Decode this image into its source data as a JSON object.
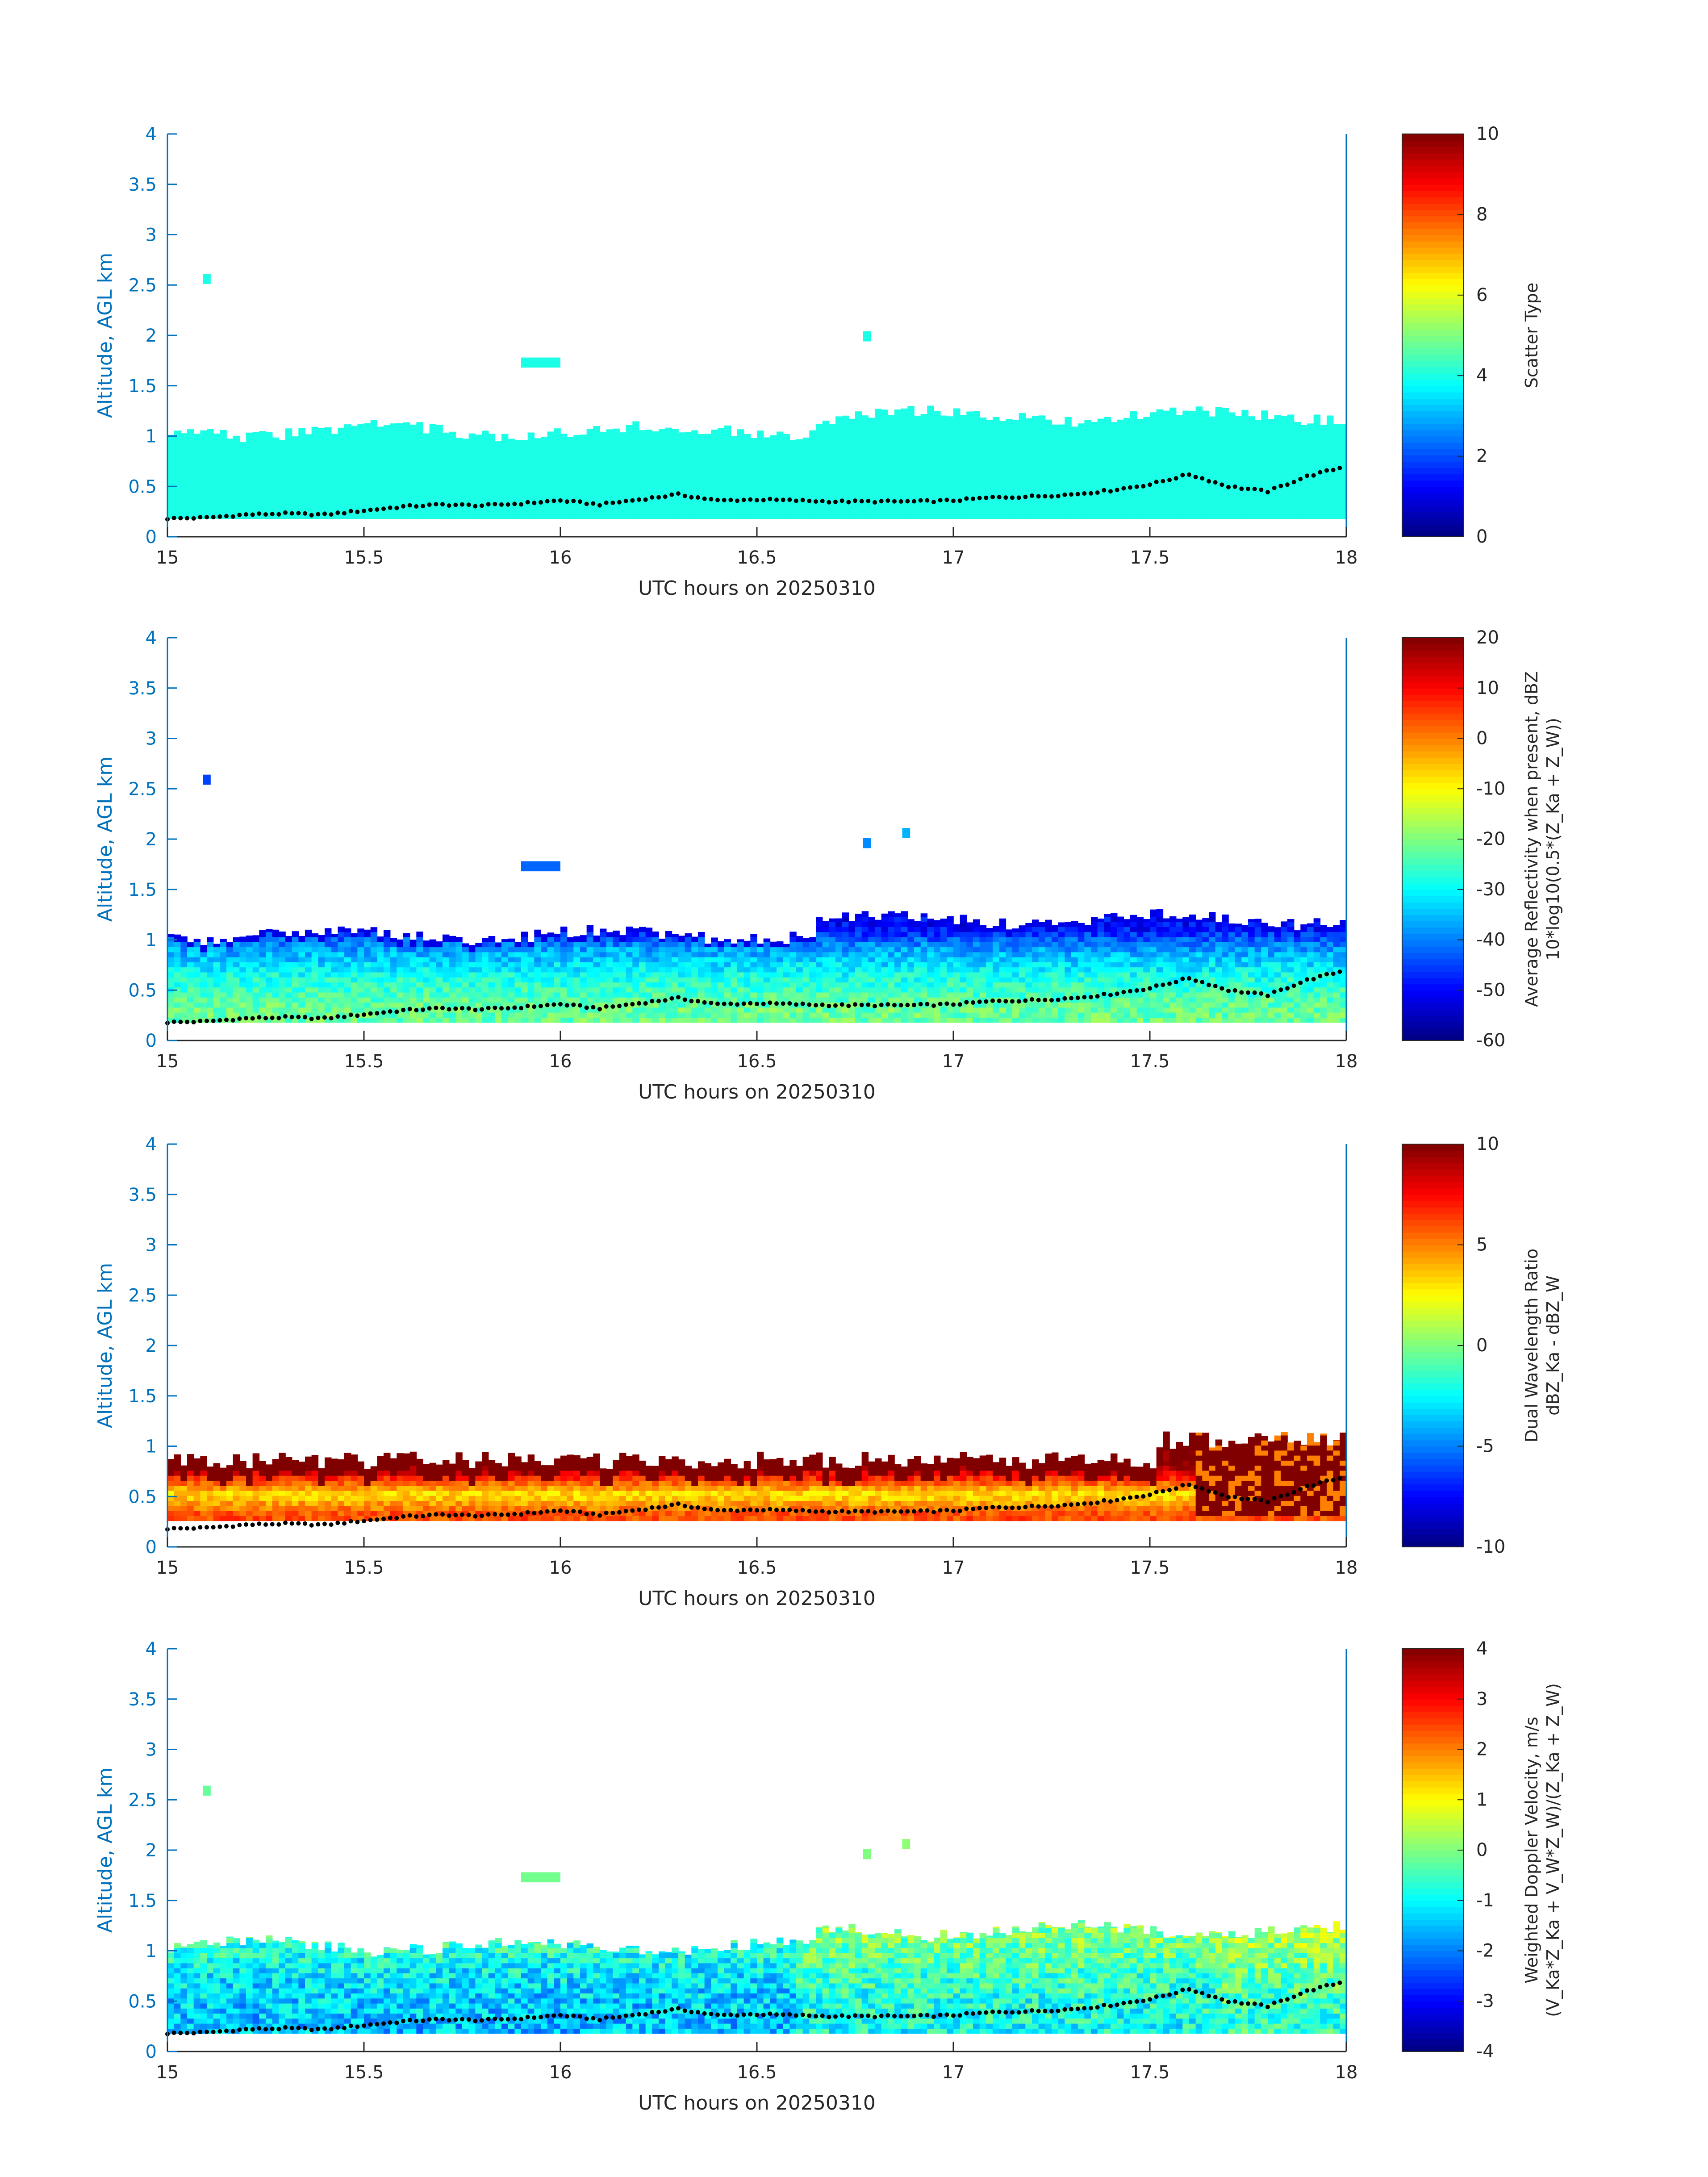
{
  "figure": {
    "x_ticks": [
      "15",
      "15.5",
      "16",
      "16.5",
      "17",
      "17.5",
      "18"
    ],
    "y_ticks": [
      "0",
      "0.5",
      "1",
      "1.5",
      "2",
      "2.5",
      "3",
      "3.5",
      "4"
    ],
    "xlabel": "UTC hours on 20250310",
    "ylabel": "Altitude, AGL km",
    "axis_color": "#0072BD",
    "colormap": "jet"
  },
  "chart_data": [
    {
      "type": "heatmap",
      "panel": "scatter-type",
      "xlabel": "UTC hours on 20250310",
      "ylabel": "Altitude, AGL km",
      "xlim": [
        15,
        18
      ],
      "ylim": [
        0,
        4
      ],
      "colorbar": {
        "label_lines": [
          "Scatter Type"
        ],
        "ticks": [
          "0",
          "2",
          "4",
          "6",
          "8",
          "10"
        ],
        "range": [
          0,
          10
        ]
      },
      "echo": {
        "bottom_km": 0.18,
        "top_km_approx": 1.05,
        "dominant_value": 4
      },
      "isolated_echoes": [
        {
          "x": 15.1,
          "y": 2.55
        },
        {
          "x": 15.95,
          "y": 1.72
        },
        {
          "x": 16.78,
          "y": 1.98
        }
      ]
    },
    {
      "type": "heatmap",
      "panel": "reflectivity",
      "xlabel": "UTC hours on 20250310",
      "ylabel": "Altitude, AGL km",
      "xlim": [
        15,
        18
      ],
      "ylim": [
        0,
        4
      ],
      "colorbar": {
        "label_lines": [
          "Average Reflectivity when present, dBZ",
          "10*log10(0.5*(Z_Ka + Z_W))"
        ],
        "ticks": [
          "-60",
          "-50",
          "-40",
          "-30",
          "-20",
          "-10",
          "0",
          "10",
          "20"
        ],
        "range": [
          -60,
          20
        ]
      },
      "profile_dbz": [
        {
          "alt": 0.3,
          "value": -22
        },
        {
          "alt": 0.6,
          "value": -28
        },
        {
          "alt": 0.9,
          "value": -38
        },
        {
          "alt": 1.1,
          "value": -50
        }
      ],
      "isolated_echoes": [
        {
          "x": 15.1,
          "y": 2.58
        },
        {
          "x": 15.95,
          "y": 1.72
        },
        {
          "x": 16.78,
          "y": 1.95
        },
        {
          "x": 16.88,
          "y": 2.05
        }
      ]
    },
    {
      "type": "heatmap",
      "panel": "dual-wavelength-ratio",
      "xlabel": "UTC hours on 20250310",
      "ylabel": "Altitude, AGL km",
      "xlim": [
        15,
        18
      ],
      "ylim": [
        0,
        4
      ],
      "colorbar": {
        "label_lines": [
          "Dual Wavelength Ratio",
          "dBZ_Ka - dBZ_W"
        ],
        "ticks": [
          "-10",
          "-5",
          "0",
          "5",
          "10"
        ],
        "range": [
          -10,
          10
        ]
      },
      "profile_dwr": [
        {
          "alt": 0.3,
          "value": 6
        },
        {
          "alt": 0.5,
          "value": 3
        },
        {
          "alt": 0.8,
          "value": 10
        }
      ]
    },
    {
      "type": "heatmap",
      "panel": "doppler-velocity",
      "xlabel": "UTC hours on 20250310",
      "ylabel": "Altitude, AGL km",
      "xlim": [
        15,
        18
      ],
      "ylim": [
        0,
        4
      ],
      "colorbar": {
        "label_lines": [
          "Weighted Doppler Velocity, m/s",
          "(V_Ka*Z_Ka + V_W*Z_W)/(Z_Ka + Z_W)"
        ],
        "ticks": [
          "-4",
          "-3",
          "-2",
          "-1",
          "0",
          "1",
          "2",
          "3",
          "4"
        ],
        "range": [
          -4,
          4
        ]
      },
      "profile_velocity": [
        {
          "alt": 0.3,
          "value": -1.5
        },
        {
          "alt": 0.7,
          "value": -1.2
        },
        {
          "alt": 1.1,
          "value": -0.6
        }
      ],
      "isolated_echoes": [
        {
          "x": 15.1,
          "y": 2.58
        },
        {
          "x": 15.95,
          "y": 1.72
        },
        {
          "x": 16.78,
          "y": 1.95
        },
        {
          "x": 16.88,
          "y": 2.05
        }
      ]
    }
  ],
  "overlay_dots": {
    "name": "",
    "points": [
      {
        "x": 15.0,
        "y": 0.18
      },
      {
        "x": 15.1,
        "y": 0.19
      },
      {
        "x": 15.2,
        "y": 0.22
      },
      {
        "x": 15.3,
        "y": 0.23
      },
      {
        "x": 15.4,
        "y": 0.22
      },
      {
        "x": 15.5,
        "y": 0.26
      },
      {
        "x": 15.6,
        "y": 0.3
      },
      {
        "x": 15.7,
        "y": 0.32
      },
      {
        "x": 15.8,
        "y": 0.31
      },
      {
        "x": 15.9,
        "y": 0.33
      },
      {
        "x": 16.0,
        "y": 0.36
      },
      {
        "x": 16.1,
        "y": 0.32
      },
      {
        "x": 16.2,
        "y": 0.37
      },
      {
        "x": 16.3,
        "y": 0.42
      },
      {
        "x": 16.4,
        "y": 0.36
      },
      {
        "x": 16.5,
        "y": 0.37
      },
      {
        "x": 16.6,
        "y": 0.36
      },
      {
        "x": 16.7,
        "y": 0.35
      },
      {
        "x": 16.8,
        "y": 0.35
      },
      {
        "x": 16.9,
        "y": 0.35
      },
      {
        "x": 17.0,
        "y": 0.36
      },
      {
        "x": 17.1,
        "y": 0.39
      },
      {
        "x": 17.2,
        "y": 0.4
      },
      {
        "x": 17.3,
        "y": 0.42
      },
      {
        "x": 17.4,
        "y": 0.46
      },
      {
        "x": 17.5,
        "y": 0.52
      },
      {
        "x": 17.6,
        "y": 0.62
      },
      {
        "x": 17.7,
        "y": 0.5
      },
      {
        "x": 17.8,
        "y": 0.45
      },
      {
        "x": 17.9,
        "y": 0.6
      },
      {
        "x": 18.0,
        "y": 0.7
      }
    ]
  }
}
